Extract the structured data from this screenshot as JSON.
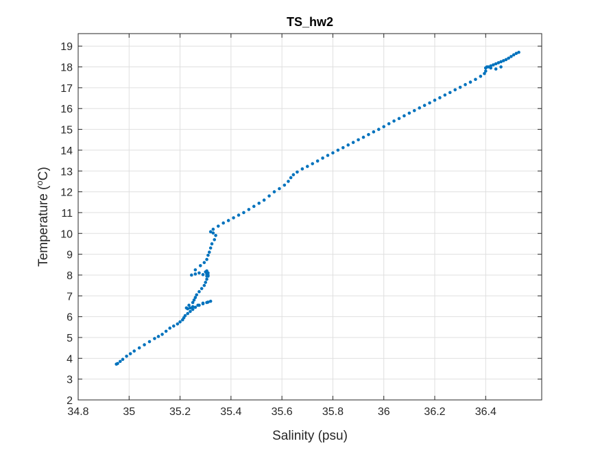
{
  "chart_data": {
    "type": "scatter",
    "title": "TS_hw2",
    "xlabel": "Salinity (psu)",
    "ylabel_main": "Temperature (",
    "ylabel_sup": "o",
    "ylabel_unit": "C)",
    "xlim": [
      34.8,
      36.62
    ],
    "ylim": [
      2,
      19.6
    ],
    "xticks": [
      34.8,
      35,
      35.2,
      35.4,
      35.6,
      35.8,
      36,
      36.2,
      36.4
    ],
    "xtick_labels": [
      "34.8",
      "35",
      "35.2",
      "35.4",
      "35.6",
      "35.8",
      "36",
      "36.2",
      "36.4"
    ],
    "yticks": [
      2,
      3,
      4,
      5,
      6,
      7,
      8,
      9,
      10,
      11,
      12,
      13,
      14,
      15,
      16,
      17,
      18,
      19
    ],
    "ytick_labels": [
      "2",
      "3",
      "4",
      "5",
      "6",
      "7",
      "8",
      "9",
      "10",
      "11",
      "12",
      "13",
      "14",
      "15",
      "16",
      "17",
      "18",
      "19"
    ],
    "grid": true,
    "box": true,
    "marker_color": "#0072BD",
    "series": [
      {
        "x": [
          34.95,
          34.955,
          34.965,
          34.975,
          34.99,
          35.005,
          35.02,
          35.04,
          35.06,
          35.08,
          35.1,
          35.115,
          35.13,
          35.145,
          35.16,
          35.175,
          35.19,
          35.2,
          35.21,
          35.215,
          35.22,
          35.23,
          35.24,
          35.25,
          35.26,
          35.275,
          35.29,
          35.305,
          35.32,
          35.31,
          35.29,
          35.27,
          35.25,
          35.24,
          35.23,
          35.225,
          35.235,
          35.25,
          35.255,
          35.26,
          35.265,
          35.275,
          35.285,
          35.295,
          35.3,
          35.305,
          35.31,
          35.31,
          35.305,
          35.3,
          35.305,
          35.31,
          35.305,
          35.29,
          35.275,
          35.26,
          35.245,
          35.26,
          35.28,
          35.295,
          35.305,
          35.31,
          35.315,
          35.32,
          35.325,
          35.335,
          35.34,
          35.33,
          35.32,
          35.33,
          35.35,
          35.37,
          35.39,
          35.41,
          35.43,
          35.45,
          35.47,
          35.49,
          35.51,
          35.53,
          35.55,
          35.57,
          35.59,
          35.61,
          35.625,
          35.635,
          35.645,
          35.66,
          35.68,
          35.7,
          35.72,
          35.74,
          35.76,
          35.78,
          35.8,
          35.82,
          35.84,
          35.86,
          35.88,
          35.9,
          35.92,
          35.94,
          35.96,
          35.98,
          36.0,
          36.02,
          36.04,
          36.06,
          36.08,
          36.1,
          36.12,
          36.14,
          36.16,
          36.18,
          36.2,
          36.22,
          36.24,
          36.26,
          36.28,
          36.3,
          36.32,
          36.34,
          36.36,
          36.38,
          36.395,
          36.4,
          36.4,
          36.41,
          36.42,
          36.43,
          36.44,
          36.45,
          36.46,
          36.47,
          36.48,
          36.49,
          36.5,
          36.51,
          36.52,
          36.53,
          36.4,
          36.405,
          36.42,
          36.44,
          36.46
        ],
        "y": [
          3.72,
          3.75,
          3.85,
          3.95,
          4.1,
          4.22,
          4.35,
          4.5,
          4.65,
          4.8,
          4.95,
          5.05,
          5.15,
          5.3,
          5.45,
          5.55,
          5.65,
          5.75,
          5.85,
          5.95,
          6.05,
          6.15,
          6.25,
          6.35,
          6.45,
          6.55,
          6.62,
          6.68,
          6.74,
          6.7,
          6.65,
          6.55,
          6.48,
          6.42,
          6.38,
          6.42,
          6.55,
          6.68,
          6.8,
          6.92,
          7.05,
          7.2,
          7.35,
          7.5,
          7.65,
          7.8,
          7.95,
          8.1,
          8.2,
          8.15,
          8.05,
          8.0,
          7.95,
          8.02,
          8.1,
          8.05,
          8.0,
          8.25,
          8.45,
          8.6,
          8.75,
          8.95,
          9.1,
          9.3,
          9.5,
          9.7,
          9.9,
          10.02,
          10.08,
          10.2,
          10.35,
          10.5,
          10.62,
          10.75,
          10.88,
          11.0,
          11.15,
          11.3,
          11.45,
          11.6,
          11.8,
          12.0,
          12.15,
          12.32,
          12.5,
          12.68,
          12.82,
          12.95,
          13.1,
          13.22,
          13.35,
          13.48,
          13.62,
          13.75,
          13.87,
          14.0,
          14.12,
          14.25,
          14.37,
          14.5,
          14.62,
          14.75,
          14.88,
          15.0,
          15.13,
          15.27,
          15.4,
          15.52,
          15.65,
          15.78,
          15.9,
          16.03,
          16.15,
          16.27,
          16.4,
          16.52,
          16.65,
          16.77,
          16.9,
          17.02,
          17.15,
          17.27,
          17.4,
          17.55,
          17.68,
          17.8,
          17.95,
          18.0,
          18.05,
          18.1,
          18.15,
          18.2,
          18.25,
          18.3,
          18.35,
          18.42,
          18.5,
          18.58,
          18.65,
          18.7,
          17.95,
          18.0,
          17.95,
          17.9,
          18.0
        ]
      }
    ]
  }
}
